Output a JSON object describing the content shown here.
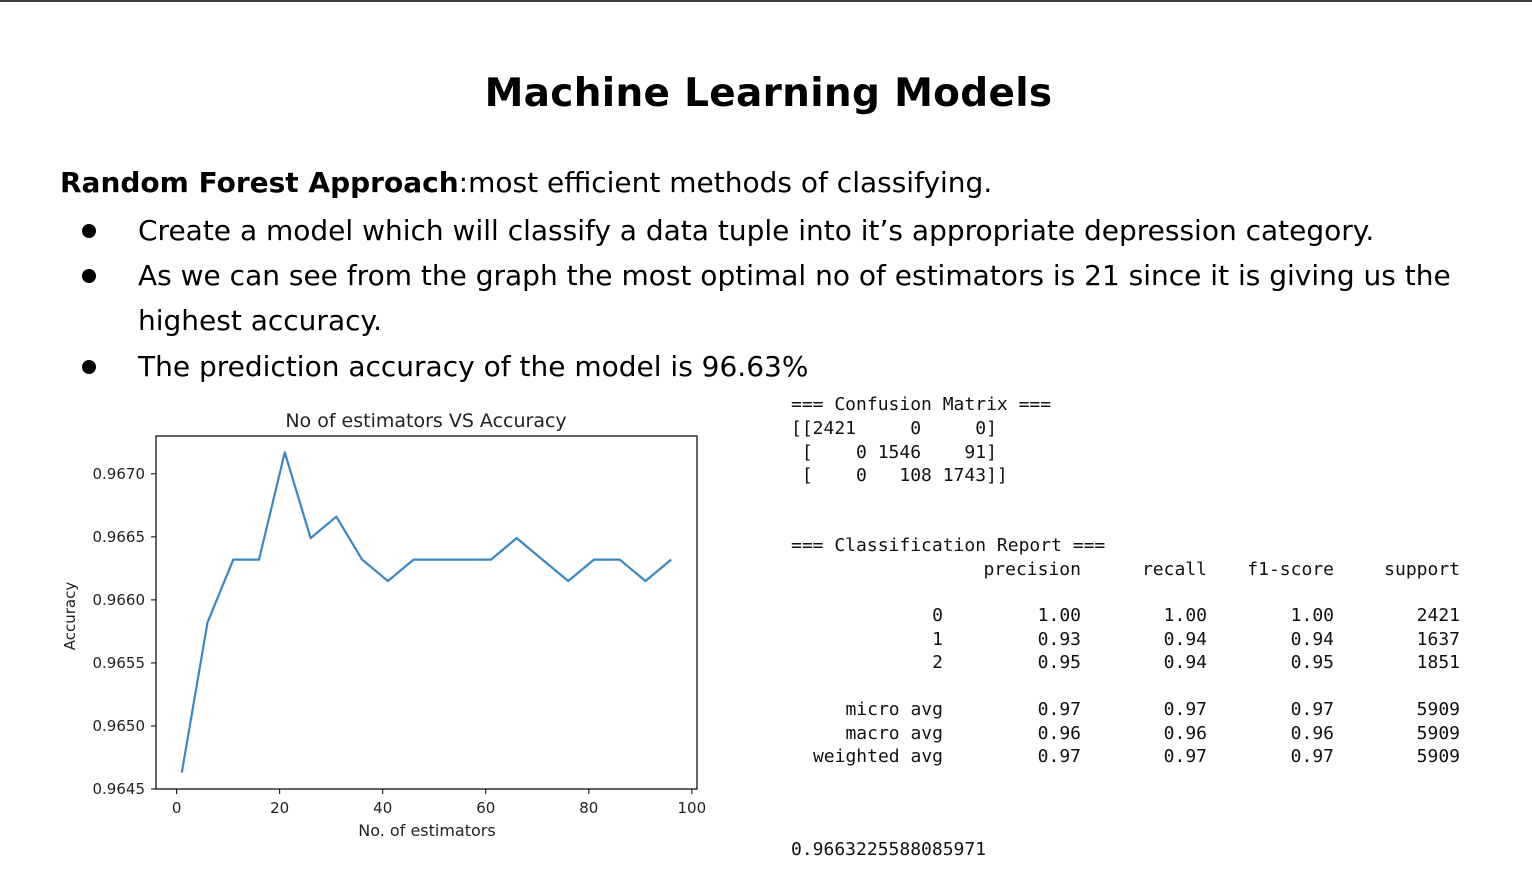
{
  "slide": {
    "title": "Machine Learning Models",
    "intro_bold": "Random Forest Approach",
    "intro_rest": ":most efficient methods of classifying.",
    "bullets": [
      "Create a model which will classify a data tuple into it’s appropriate depression category.",
      "As we can see from the graph the most optimal no of estimators is 21 since it is giving us the highest accuracy.",
      "The prediction accuracy of the model  is 96.63%"
    ]
  },
  "chart_data": {
    "type": "line",
    "title": "No of estimators VS Accuracy",
    "xlabel": "No. of estimators",
    "ylabel": "Accuracy",
    "x": [
      1,
      6,
      11,
      16,
      21,
      26,
      31,
      36,
      41,
      46,
      51,
      56,
      61,
      66,
      71,
      76,
      81,
      86,
      91,
      96
    ],
    "y": [
      0.96463,
      0.96582,
      0.96632,
      0.96632,
      0.96717,
      0.96649,
      0.96666,
      0.96632,
      0.96615,
      0.96632,
      0.96632,
      0.96632,
      0.96632,
      0.96649,
      0.96632,
      0.96615,
      0.96632,
      0.96632,
      0.96615,
      0.96632
    ],
    "xlim": [
      -4,
      101
    ],
    "ylim": [
      0.9645,
      0.9673
    ],
    "xticks": [
      "0",
      "20",
      "40",
      "60",
      "80",
      "100"
    ],
    "yticks": [
      "0.9645",
      "0.9650",
      "0.9655",
      "0.9660",
      "0.9665",
      "0.9670"
    ],
    "line_color": "#3a87c4",
    "grid": false
  },
  "confusion": {
    "header": "=== Confusion Matrix ===",
    "rows": [
      "[[2421     0     0]",
      " [    0 1546    91]",
      " [    0   108 1743]]"
    ]
  },
  "report": {
    "header": "=== Classification Report ===",
    "columns": [
      "precision",
      "recall",
      "f1-score",
      "support"
    ],
    "rows": [
      {
        "label": "0",
        "values": [
          "1.00",
          "1.00",
          "1.00",
          "2421"
        ]
      },
      {
        "label": "1",
        "values": [
          "0.93",
          "0.94",
          "0.94",
          "1637"
        ]
      },
      {
        "label": "2",
        "values": [
          "0.95",
          "0.94",
          "0.95",
          "1851"
        ]
      },
      {
        "label": "micro avg",
        "values": [
          "0.97",
          "0.97",
          "0.97",
          "5909"
        ]
      },
      {
        "label": "macro avg",
        "values": [
          "0.96",
          "0.96",
          "0.96",
          "5909"
        ]
      },
      {
        "label": "weighted avg",
        "values": [
          "0.97",
          "0.97",
          "0.97",
          "5909"
        ]
      }
    ]
  },
  "accuracy_output": "0.9663225588085971"
}
